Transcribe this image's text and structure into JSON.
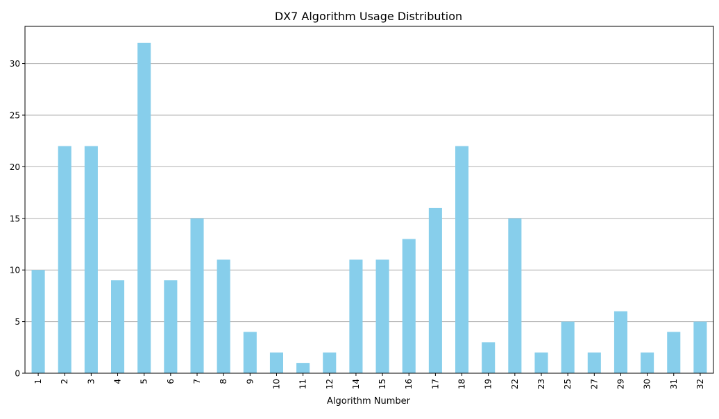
{
  "chart_data": {
    "type": "bar",
    "title": "DX7 Algorithm Usage Distribution",
    "xlabel": "Algorithm Number",
    "ylabel": "",
    "categories": [
      "1",
      "2",
      "3",
      "4",
      "5",
      "6",
      "7",
      "8",
      "9",
      "10",
      "11",
      "12",
      "14",
      "15",
      "16",
      "17",
      "18",
      "19",
      "22",
      "23",
      "25",
      "27",
      "29",
      "30",
      "31",
      "32"
    ],
    "values": [
      10,
      22,
      22,
      9,
      32,
      9,
      15,
      11,
      4,
      2,
      1,
      2,
      11,
      11,
      13,
      16,
      22,
      3,
      15,
      2,
      5,
      2,
      6,
      2,
      4,
      5
    ],
    "ylim": [
      0,
      33.6
    ],
    "yticks": [
      0,
      5,
      10,
      15,
      20,
      25,
      30
    ],
    "grid": "y",
    "legend": "none",
    "bar_color": "#87ceeb"
  }
}
